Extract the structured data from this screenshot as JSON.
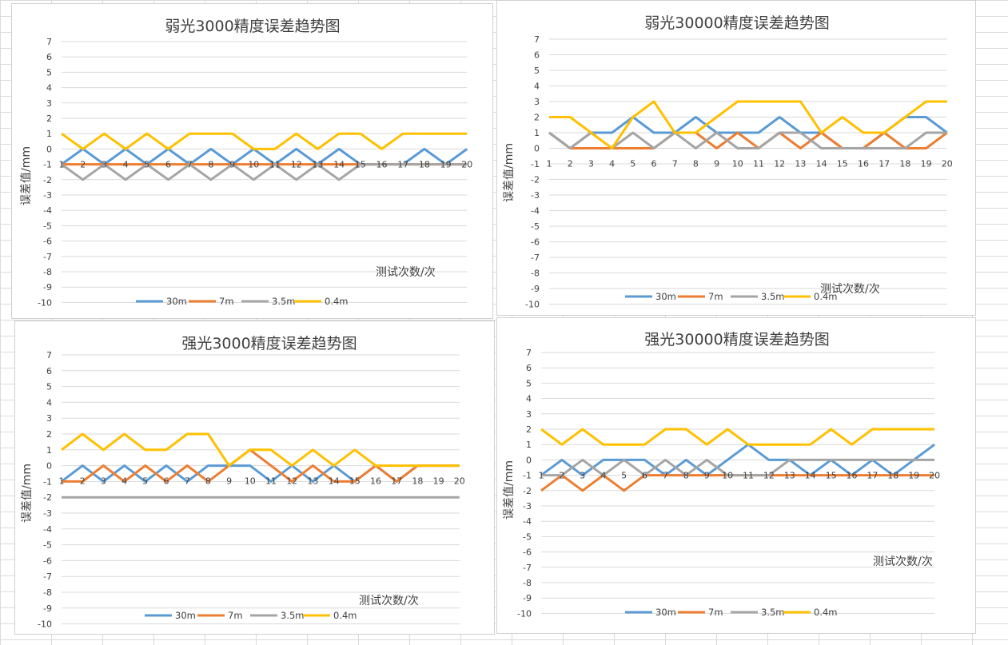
{
  "colors": {
    "30m": "#5b9bd5",
    "7m": "#ed7d31",
    "3.5m": "#a5a5a5",
    "0.4m": "#ffc000"
  },
  "chart_data": [
    {
      "type": "line",
      "title": "弱光3000精度误差趋势图",
      "xlabel": "测试次数/次",
      "ylabel": "误差值/mm",
      "ylim": [
        -10,
        7
      ],
      "grid": true,
      "legend": "bottom",
      "categories": [
        "1",
        "2",
        "3",
        "4",
        "5",
        "6",
        "7",
        "8",
        "9",
        "10",
        "11",
        "12",
        "13",
        "14",
        "15",
        "16",
        "17",
        "18",
        "19",
        "20"
      ],
      "series": [
        {
          "name": "30m",
          "values": [
            -1,
            0,
            -1,
            0,
            -1,
            0,
            -1,
            0,
            -1,
            0,
            -1,
            0,
            -1,
            0,
            -1,
            -1,
            -1,
            0,
            -1,
            0
          ]
        },
        {
          "name": "7m",
          "values": [
            -1,
            -1,
            -1,
            -1,
            -1,
            -1,
            -1,
            -1,
            -1,
            -1,
            -1,
            -1,
            -1,
            -1,
            -1,
            -1,
            -1,
            -1,
            -1,
            -1
          ]
        },
        {
          "name": "3.5m",
          "values": [
            -1,
            -2,
            -1,
            -2,
            -1,
            -2,
            -1,
            -2,
            -1,
            -2,
            -1,
            -2,
            -1,
            -2,
            -1,
            -1,
            -1,
            -1,
            -1,
            -1
          ]
        },
        {
          "name": "0.4m",
          "values": [
            1,
            0,
            1,
            0,
            1,
            0,
            1,
            1,
            1,
            0,
            0,
            1,
            0,
            1,
            1,
            0,
            1,
            1,
            1,
            1
          ]
        }
      ]
    },
    {
      "type": "line",
      "title": "弱光30000精度误差趋势图",
      "xlabel": "测试次数/次",
      "ylabel": "误差值/mm",
      "ylim": [
        -10,
        7
      ],
      "grid": true,
      "legend": "bottom",
      "categories": [
        "1",
        "2",
        "3",
        "4",
        "5",
        "6",
        "7",
        "8",
        "9",
        "10",
        "11",
        "12",
        "13",
        "14",
        "15",
        "16",
        "17",
        "18",
        "19",
        "20"
      ],
      "series": [
        {
          "name": "30m",
          "values": [
            1,
            0,
            1,
            1,
            2,
            1,
            1,
            2,
            1,
            1,
            1,
            2,
            1,
            1,
            0,
            0,
            1,
            2,
            2,
            1
          ]
        },
        {
          "name": "7m",
          "values": [
            1,
            0,
            0,
            0,
            0,
            0,
            1,
            1,
            0,
            1,
            0,
            1,
            0,
            1,
            0,
            0,
            1,
            0,
            0,
            1
          ]
        },
        {
          "name": "3.5m",
          "values": [
            1,
            0,
            1,
            0,
            1,
            0,
            1,
            0,
            1,
            0,
            0,
            1,
            1,
            0,
            0,
            0,
            0,
            0,
            1,
            1
          ]
        },
        {
          "name": "0.4m",
          "values": [
            2,
            2,
            1,
            0,
            2,
            3,
            1,
            1,
            2,
            3,
            3,
            3,
            3,
            1,
            2,
            1,
            1,
            2,
            3,
            3
          ]
        }
      ]
    },
    {
      "type": "line",
      "title": "强光3000精度误差趋势图",
      "xlabel": "测试次数/次",
      "ylabel": "误差值/mm",
      "ylim": [
        -10,
        7
      ],
      "grid": true,
      "legend": "bottom",
      "categories": [
        "1",
        "2",
        "3",
        "4",
        "5",
        "6",
        "7",
        "8",
        "9",
        "10",
        "11",
        "12",
        "13",
        "14",
        "15",
        "16",
        "17",
        "18",
        "19",
        "20"
      ],
      "series": [
        {
          "name": "30m",
          "values": [
            -1,
            0,
            -1,
            0,
            -1,
            0,
            -1,
            0,
            0,
            0,
            -1,
            0,
            -1,
            0,
            -1,
            0,
            -1,
            0,
            0,
            0
          ]
        },
        {
          "name": "7m",
          "values": [
            -1,
            -1,
            0,
            -1,
            0,
            -1,
            0,
            -1,
            0,
            1,
            0,
            -1,
            0,
            -1,
            -1,
            0,
            -1,
            0,
            0,
            0
          ]
        },
        {
          "name": "3.5m",
          "values": [
            -2,
            -2,
            -2,
            -2,
            -2,
            -2,
            -2,
            -2,
            -2,
            -2,
            -2,
            -2,
            -2,
            -2,
            -2,
            -2,
            -2,
            -2,
            -2,
            -2
          ]
        },
        {
          "name": "0.4m",
          "values": [
            1,
            2,
            1,
            2,
            1,
            1,
            2,
            2,
            0,
            1,
            1,
            0,
            1,
            0,
            1,
            0,
            0,
            0,
            0,
            0
          ]
        }
      ]
    },
    {
      "type": "line",
      "title": "强光30000精度误差趋势图",
      "xlabel": "测试次数/次",
      "ylabel": "误差值/mm",
      "ylim": [
        -10,
        7
      ],
      "grid": true,
      "legend": "bottom",
      "categories": [
        "1",
        "2",
        "3",
        "4",
        "5",
        "6",
        "7",
        "8",
        "9",
        "10",
        "11",
        "12",
        "13",
        "14",
        "15",
        "16",
        "17",
        "18",
        "19",
        "20"
      ],
      "series": [
        {
          "name": "30m",
          "values": [
            -1,
            0,
            -1,
            0,
            0,
            0,
            -1,
            0,
            -1,
            0,
            1,
            0,
            0,
            -1,
            0,
            -1,
            0,
            -1,
            0,
            1
          ]
        },
        {
          "name": "7m",
          "values": [
            -2,
            -1,
            -2,
            -1,
            -2,
            -1,
            -1,
            -1,
            -1,
            -1,
            -1,
            -1,
            -1,
            -1,
            -1,
            -1,
            -1,
            -1,
            -1,
            -1
          ]
        },
        {
          "name": "3.5m",
          "values": [
            -1,
            -1,
            0,
            -1,
            0,
            -1,
            0,
            -1,
            0,
            -1,
            -1,
            -1,
            0,
            0,
            0,
            0,
            0,
            0,
            0,
            0
          ]
        },
        {
          "name": "0.4m",
          "values": [
            2,
            1,
            2,
            1,
            1,
            1,
            2,
            2,
            1,
            2,
            1,
            1,
            1,
            1,
            2,
            1,
            2,
            2,
            2,
            2
          ]
        }
      ]
    }
  ]
}
